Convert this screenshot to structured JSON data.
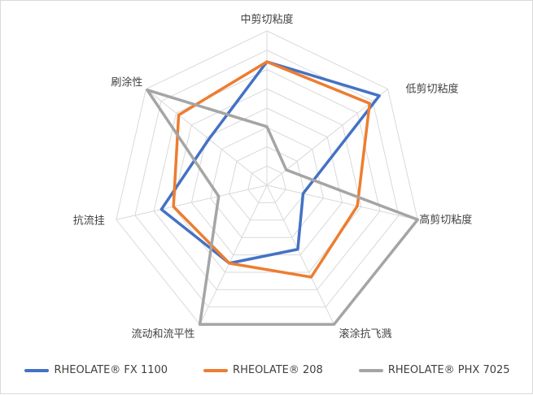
{
  "chart_data": {
    "type": "radar",
    "axes": [
      "中剪切粘度",
      "低剪切粘度",
      "高剪切粘度",
      "滚涂抗飞溅",
      "流动和流平性",
      "抗流挂",
      "刷涂性"
    ],
    "rmax": 10,
    "rings": 8,
    "grid": true,
    "legend_position": "bottom",
    "series": [
      {
        "name": "RHEOLATE® FX 1100",
        "color": "#4472c4",
        "values": [
          8.0,
          9.3,
          2.4,
          4.6,
          5.6,
          7.0,
          4.8
        ]
      },
      {
        "name": "RHEOLATE® 208",
        "color": "#ed7d31",
        "values": [
          8.0,
          8.5,
          6.0,
          6.6,
          5.6,
          6.2,
          7.3
        ]
      },
      {
        "name": "RHEOLATE® PHX 7025",
        "color": "#a5a5a5",
        "values": [
          3.8,
          1.6,
          10.0,
          10.0,
          10.0,
          3.2,
          9.9
        ]
      }
    ]
  }
}
